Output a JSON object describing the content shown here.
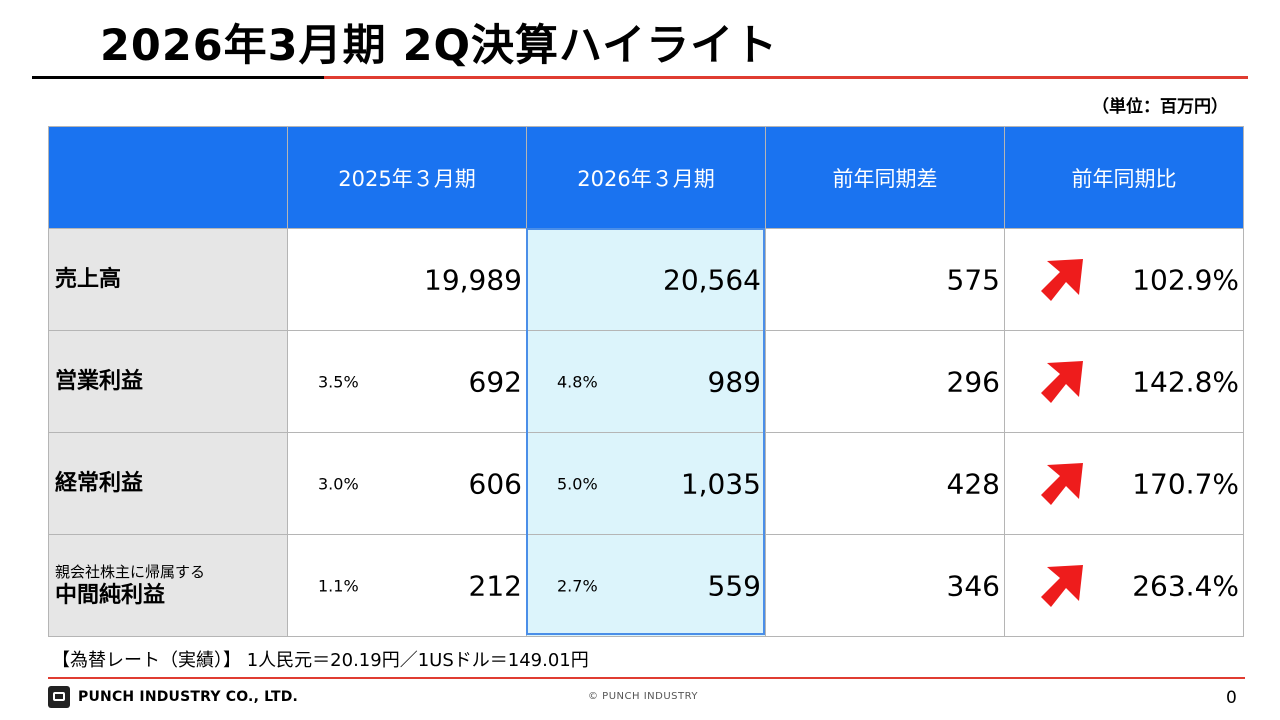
{
  "title": "2026年3月期 2Q決算ハイライト",
  "unit": "（単位：百万円）",
  "table": {
    "headers": [
      "",
      "2025年３月期",
      "2026年３月期",
      "前年同期差",
      "前年同期比"
    ],
    "rows": [
      {
        "label_sub": "",
        "label": "売上高",
        "prev_ratio": "",
        "prev": "19,989",
        "curr_ratio": "",
        "curr": "20,564",
        "diff": "575",
        "yoy": "102.9%",
        "trend_icon": "red-up-arrow-icon"
      },
      {
        "label_sub": "",
        "label": "営業利益",
        "prev_ratio": "3.5%",
        "prev": "692",
        "curr_ratio": "4.8%",
        "curr": "989",
        "diff": "296",
        "yoy": "142.8%",
        "trend_icon": "red-up-arrow-icon"
      },
      {
        "label_sub": "",
        "label": "経常利益",
        "prev_ratio": "3.0%",
        "prev": "606",
        "curr_ratio": "5.0%",
        "curr": "1,035",
        "diff": "428",
        "yoy": "170.7%",
        "trend_icon": "red-up-arrow-icon"
      },
      {
        "label_sub": "親会社株主に帰属する",
        "label": "中間純利益",
        "prev_ratio": "1.1%",
        "prev": "212",
        "curr_ratio": "2.7%",
        "curr": "559",
        "diff": "346",
        "yoy": "263.4%",
        "trend_icon": "red-up-arrow-icon"
      }
    ]
  },
  "note": "【為替レート（実績）】 1人民元＝20.19円／1USドル＝149.01円",
  "footer": {
    "company": "PUNCH INDUSTRY CO., LTD.",
    "copyright": "© PUNCH INDUSTRY",
    "page": "0"
  },
  "colors": {
    "header_blue": "#1a73f0",
    "accent_red": "#e03c31",
    "highlight": "#dcf4fb",
    "label_gray": "#e6e6e6",
    "arrow_red": "#ee1c1c"
  }
}
